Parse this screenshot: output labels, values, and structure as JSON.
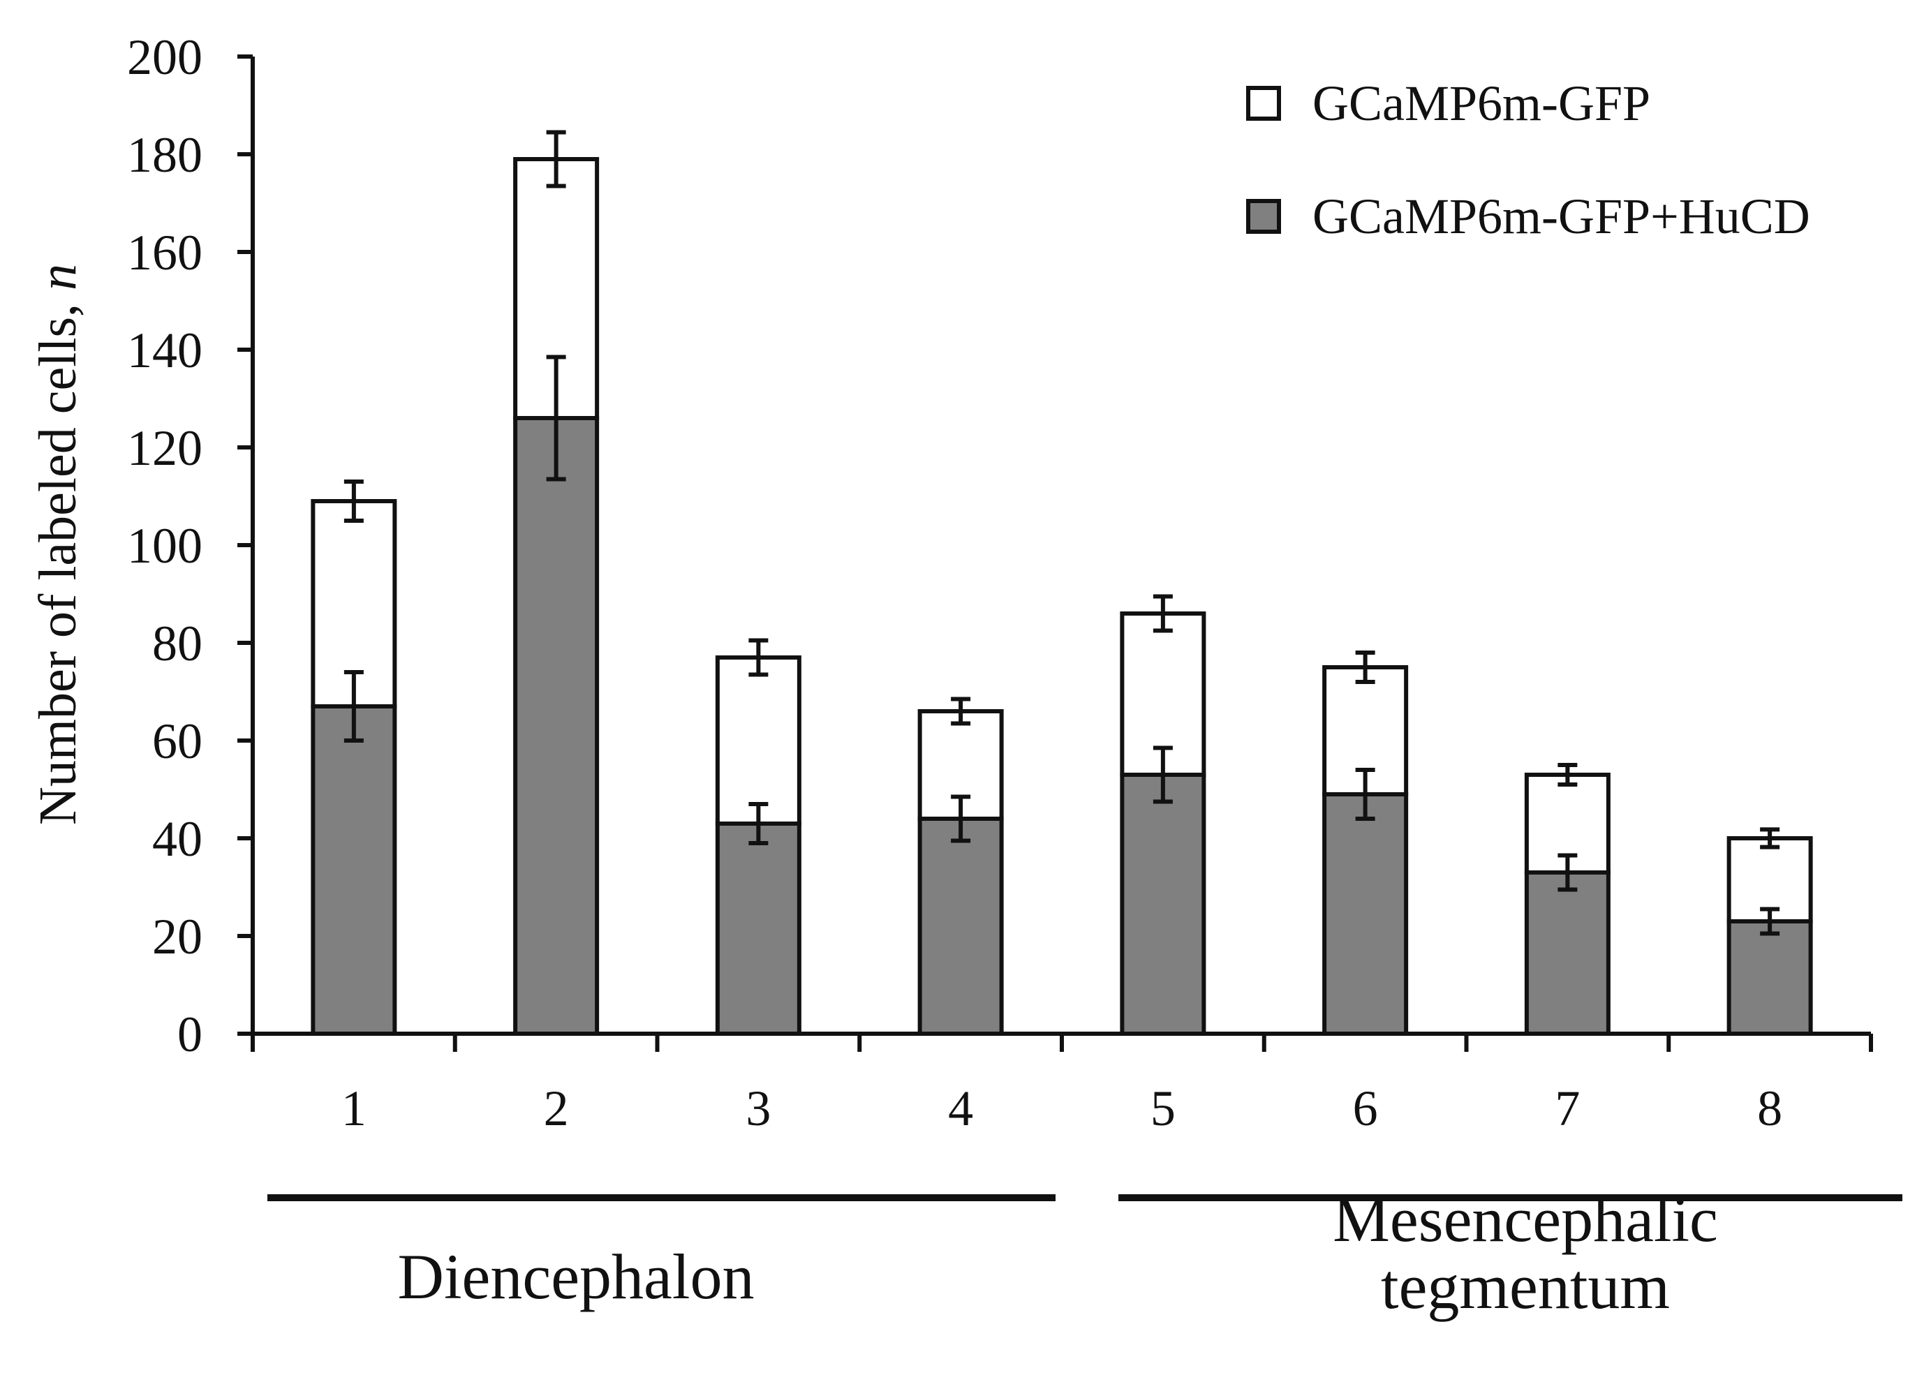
{
  "chart_data": {
    "type": "bar",
    "stacked": true,
    "title": "",
    "xlabel": "",
    "ylabel": "Number of labeled cells, n",
    "ylabel_main": "Number of labeled cells, ",
    "ylabel_italic": "n",
    "ylim": [
      0,
      200
    ],
    "yticks": [
      0,
      20,
      40,
      60,
      80,
      100,
      120,
      140,
      160,
      180,
      200
    ],
    "categories": [
      "1",
      "2",
      "3",
      "4",
      "5",
      "6",
      "7",
      "8"
    ],
    "series": [
      {
        "name": "GCaMP6m-GFP+HuCD",
        "color": "#808080",
        "values": [
          67,
          126,
          43,
          44,
          53,
          49,
          33,
          23
        ],
        "errors": [
          7,
          12.5,
          4,
          4.5,
          5.5,
          5,
          3.5,
          2.5
        ]
      },
      {
        "name": "GCaMP6m-GFP",
        "color": "#ffffff",
        "totals": [
          109,
          179,
          77,
          66,
          86,
          75,
          53,
          40
        ],
        "errors": [
          4,
          5.5,
          3.5,
          2.5,
          3.5,
          3,
          2,
          1.8
        ]
      }
    ],
    "legend_order": [
      "GCaMP6m-GFP",
      "GCaMP6m-GFP+HuCD"
    ],
    "legend_position": "top-right",
    "groups": [
      {
        "label_lines": [
          "Diencephalon"
        ],
        "categories": [
          "1",
          "2",
          "3",
          "4"
        ]
      },
      {
        "label_lines": [
          "Mesencephalic",
          "tegmentum"
        ],
        "categories": [
          "5",
          "6",
          "7",
          "8"
        ]
      }
    ],
    "grid": false
  }
}
